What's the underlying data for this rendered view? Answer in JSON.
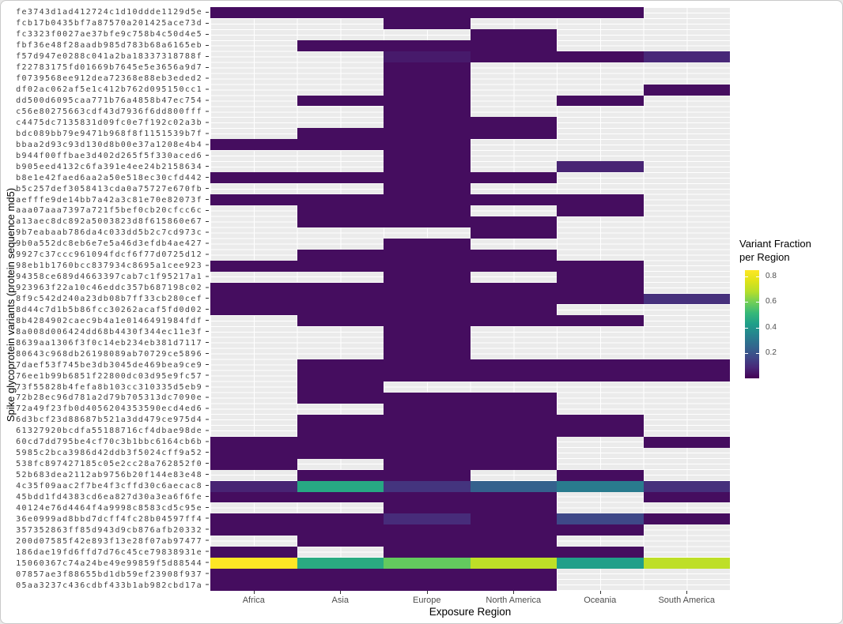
{
  "y_axis": {
    "title": "Spike glycoprotein variants (protein sequence md5)"
  },
  "x_axis": {
    "title": "Exposure Region"
  },
  "legend": {
    "title_line1": "Variant Fraction",
    "title_line2": "per Region",
    "ticks": [
      0.8,
      0.6,
      0.4,
      0.2
    ]
  },
  "colors": {
    "panel_bg": "#EBEBEB",
    "grid": "#FFFFFF",
    "axis_text": "#4D4D4D",
    "title_text": "#000000"
  },
  "chart_data": {
    "type": "heatmap",
    "title": "",
    "xlabel": "Exposure Region",
    "ylabel": "Spike glycoprotein variants (protein sequence md5)",
    "legend_title": "Variant Fraction per Region",
    "legend_position": "right",
    "grid": true,
    "x_categories": [
      "Africa",
      "Asia",
      "Europe",
      "North America",
      "Oceania",
      "South America"
    ],
    "y_categories": [
      "fe3743d1ad412724c1d10ddde1129d5e",
      "fcb17b0435bf7a87570a201425ace73d",
      "fc3323f0027ae37bfe9c758b4c50d4e5",
      "fbf36e48f28aadb985d783b68a6165eb",
      "f57d947e0288c041a2ba18337318788f",
      "f22783175fd01669b7645e5e3656a9d7",
      "f0739568ee912dea72368e88eb3eded2",
      "df02ac062af5e1c412b762d095150cc1",
      "dd500d6095caa771b76a4858b47ec754",
      "c56e80275663cdf43d7936f6dd800fff",
      "c4475dc7135831d09fc0e7f192c02a3b",
      "bdc089bb79e9471b968f8f1151539b7f",
      "bbaa2d93c93d130d8b00e37a1208e4b4",
      "b944f00ffbae3d402d265f5f330aced6",
      "b905eed4132c6fa391e4ee24b2158634",
      "b8e1e42faed6aa2a50e518ec30cfd442",
      "b5c257def3058413cda0a75727e670fb",
      "aefffe9de14bb7a42a3c81e70e82073f",
      "aaa07aaa7397a721f5bef0cb20cfcc6c",
      "a13aec8dc892a5003823d8f615860e67",
      "9b7eabaab786da4c033dd5b2c7cd973c",
      "9b0a552dc8eb6e7e5a46d3efdb4ae427",
      "9927c37ccc961094fdcf6f77d0725d12",
      "98eb1b1760bcc837934c8695a1cee923",
      "94358ce689d4663397cab7c1f95217a1",
      "923963f22a10c46eddc357b687198c02",
      "8f9c542d240a23db08b7ff33cb280cef",
      "8d44c7d1b5b86fcc30262acaf5fd0d02",
      "8b4284902caec9b4a1e0146491984fdf",
      "8a008d006424dd68b4430f344ec11e3f",
      "8639aa1306f3f0c14eb234eb381d7117",
      "80643c968db26198089ab70729ce5896",
      "7daef53f745be3db3045de469bea9ce9",
      "76ee1b99b6851f22800dc03d95e9fc57",
      "73f55828b4fefa8b103cc310335d5eb9",
      "72b28ec96d781a2d79b705313dc7090e",
      "72a49f23fb0d4056204353590ecd4ed6",
      "6d3bcf23d88687b521a3dd479ce975d4",
      "61327920bcdfa55188716cf4dbae98de",
      "60cd7dd795be4cf70c3b1bbc6164cb6b",
      "5985c2bca3986d42ddb3f5024cff9a52",
      "538fc897427185c05e2cc28a762852f0",
      "52b683dea2112ab9756b20f144e83e48",
      "4c35f09aac2f7be4f3cffd30c6aecac8",
      "45bdd1fd4383cd6ea827d30a3ea6f6fe",
      "40124e76d4464f4a9998c8583cd5c95e",
      "36e0999ad8bbd7dcff4fc28b04597ff4",
      "357352863ff85d943d9cb876afb20332",
      "200d07585f42e893f13e28f07ab97477",
      "186dae19fd6ffd7d76c45ce79838931e",
      "15060367c74a24be49e99859f5d88544",
      "07857ae3f88655bd1db59ef23908f937",
      "05aa3237c436cdbf433b1ab982cbd17a"
    ],
    "values": [
      [
        0.03,
        0.03,
        0.03,
        0.03,
        0.03,
        null
      ],
      [
        null,
        null,
        0.03,
        null,
        null,
        null
      ],
      [
        null,
        null,
        null,
        0.03,
        null,
        null
      ],
      [
        null,
        0.03,
        0.03,
        0.03,
        null,
        null
      ],
      [
        null,
        null,
        0.06,
        0.03,
        0.03,
        0.09
      ],
      [
        null,
        null,
        0.03,
        null,
        null,
        null
      ],
      [
        null,
        null,
        0.03,
        null,
        null,
        null
      ],
      [
        null,
        null,
        0.03,
        null,
        null,
        0.03
      ],
      [
        null,
        0.03,
        0.03,
        null,
        0.03,
        null
      ],
      [
        null,
        null,
        0.03,
        null,
        null,
        null
      ],
      [
        null,
        null,
        0.03,
        0.03,
        null,
        null
      ],
      [
        null,
        0.03,
        0.03,
        0.03,
        null,
        null
      ],
      [
        0.03,
        0.03,
        0.03,
        null,
        null,
        null
      ],
      [
        null,
        null,
        0.03,
        null,
        null,
        null
      ],
      [
        null,
        null,
        0.03,
        null,
        0.08,
        null
      ],
      [
        0.03,
        0.03,
        0.03,
        0.03,
        null,
        null
      ],
      [
        null,
        null,
        0.03,
        null,
        null,
        null
      ],
      [
        0.03,
        0.03,
        0.03,
        0.03,
        0.03,
        null
      ],
      [
        null,
        0.03,
        0.03,
        null,
        0.03,
        null
      ],
      [
        null,
        0.03,
        0.03,
        0.03,
        null,
        null
      ],
      [
        null,
        null,
        null,
        0.03,
        null,
        null
      ],
      [
        null,
        null,
        0.03,
        null,
        null,
        null
      ],
      [
        null,
        0.03,
        0.03,
        0.03,
        null,
        null
      ],
      [
        0.03,
        0.03,
        0.03,
        0.03,
        0.03,
        null
      ],
      [
        null,
        null,
        0.03,
        null,
        0.03,
        null
      ],
      [
        0.03,
        0.03,
        0.03,
        0.03,
        0.03,
        null
      ],
      [
        0.03,
        0.03,
        0.03,
        0.03,
        0.03,
        0.11
      ],
      [
        0.03,
        0.03,
        0.03,
        0.03,
        null,
        null
      ],
      [
        null,
        0.03,
        0.03,
        0.03,
        0.03,
        null
      ],
      [
        null,
        null,
        0.03,
        null,
        null,
        null
      ],
      [
        null,
        null,
        0.03,
        null,
        null,
        null
      ],
      [
        null,
        null,
        0.03,
        null,
        null,
        null
      ],
      [
        null,
        0.03,
        0.03,
        0.03,
        0.03,
        0.03
      ],
      [
        null,
        0.03,
        0.03,
        0.03,
        0.03,
        0.03
      ],
      [
        null,
        0.03,
        null,
        null,
        null,
        null
      ],
      [
        null,
        0.03,
        0.03,
        0.03,
        null,
        null
      ],
      [
        null,
        null,
        0.03,
        0.03,
        null,
        null
      ],
      [
        null,
        0.03,
        0.03,
        0.03,
        0.03,
        null
      ],
      [
        null,
        0.03,
        0.03,
        0.03,
        0.03,
        null
      ],
      [
        0.03,
        0.03,
        0.03,
        0.03,
        null,
        0.03
      ],
      [
        0.03,
        0.03,
        0.03,
        0.03,
        null,
        null
      ],
      [
        0.03,
        null,
        0.03,
        0.03,
        null,
        null
      ],
      [
        null,
        0.03,
        0.03,
        null,
        0.03,
        null
      ],
      [
        0.08,
        0.46,
        0.12,
        0.24,
        0.32,
        0.11
      ],
      [
        0.03,
        0.03,
        0.03,
        0.03,
        null,
        0.03
      ],
      [
        null,
        null,
        0.03,
        0.03,
        null,
        null
      ],
      [
        0.03,
        0.03,
        0.1,
        0.03,
        0.17,
        0.03
      ],
      [
        0.03,
        0.03,
        0.03,
        0.03,
        0.03,
        null
      ],
      [
        null,
        0.03,
        0.03,
        0.03,
        null,
        null
      ],
      [
        0.03,
        null,
        0.03,
        0.03,
        0.03,
        null
      ],
      [
        0.85,
        0.47,
        0.58,
        0.7,
        0.43,
        0.7
      ],
      [
        0.03,
        0.03,
        0.03,
        0.03,
        null,
        null
      ],
      [
        0.03,
        0.03,
        0.03,
        0.03,
        null,
        null
      ]
    ],
    "scale": {
      "min": 0.005,
      "max": 0.85,
      "palette": "viridis",
      "viridis_stops": [
        [
          0.0,
          "#440154"
        ],
        [
          0.1,
          "#482878"
        ],
        [
          0.2,
          "#3e4a89"
        ],
        [
          0.3,
          "#31688e"
        ],
        [
          0.4,
          "#26828e"
        ],
        [
          0.5,
          "#1f9e89"
        ],
        [
          0.6,
          "#35b779"
        ],
        [
          0.7,
          "#6ece58"
        ],
        [
          0.8,
          "#b5de2b"
        ],
        [
          0.9,
          "#dfe318"
        ],
        [
          1.0,
          "#fde725"
        ]
      ]
    }
  }
}
